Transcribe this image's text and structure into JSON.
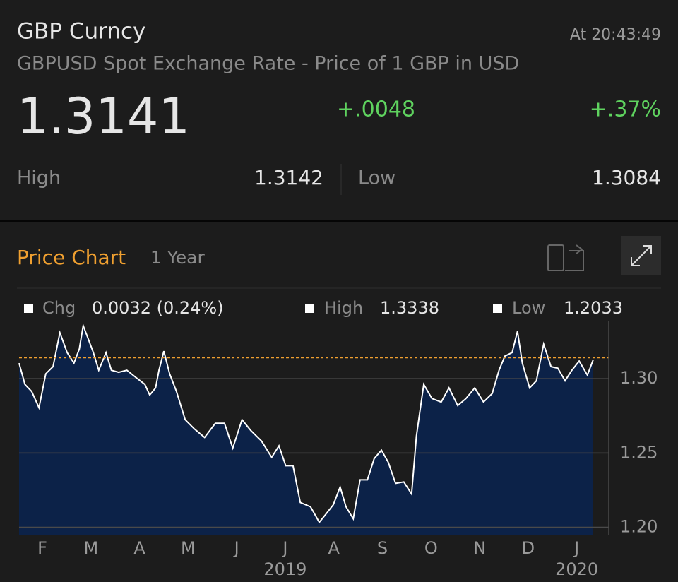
{
  "header": {
    "title": "GBP Curncy",
    "time": "At 20:43:49",
    "subtitle": "GBPUSD Spot Exchange Rate - Price of 1 GBP in USD",
    "price": "1.3141",
    "change": "+.0048",
    "change_pct": "+.37%",
    "high_label": "High",
    "high_value": "1.3142",
    "low_label": "Low",
    "low_value": "1.3084"
  },
  "chart_panel": {
    "title": "Price Chart",
    "range": "1 Year",
    "stats": [
      {
        "label": "Chg",
        "value": "0.0032 (0.24%)"
      },
      {
        "label": "High",
        "value": "1.3338"
      },
      {
        "label": "Low",
        "value": "1.2033"
      }
    ]
  },
  "chart_data": {
    "type": "area",
    "color": "#0c2248",
    "line_color": "#ffffff",
    "x": [
      0.52,
      0.64,
      0.78,
      0.93,
      1.07,
      1.22,
      1.36,
      1.51,
      1.65,
      1.76,
      1.84,
      1.94,
      2.05,
      2.16,
      2.31,
      2.42,
      2.57,
      2.74,
      2.92,
      3.11,
      3.21,
      3.33,
      3.4,
      3.5,
      3.62,
      3.76,
      3.94,
      4.13,
      4.34,
      4.56,
      4.75,
      4.92,
      5.11,
      5.29,
      5.51,
      5.72,
      5.87,
      6.01,
      6.16,
      6.31,
      6.52,
      6.7,
      6.84,
      6.99,
      7.13,
      7.25,
      7.4,
      7.54,
      7.69,
      7.83,
      7.98,
      8.12,
      8.27,
      8.44,
      8.6,
      8.7,
      8.85,
      9.02,
      9.21,
      9.37,
      9.55,
      9.72,
      9.9,
      10.08,
      10.26,
      10.4,
      10.52,
      10.67,
      10.78,
      10.88,
      11.03,
      11.17,
      11.32,
      11.47,
      11.61,
      11.76,
      11.9,
      12.05,
      12.22,
      12.34
    ],
    "values": [
      1.3105,
      1.2962,
      1.2914,
      1.2805,
      1.3033,
      1.3081,
      1.331,
      1.3176,
      1.3105,
      1.32,
      1.3357,
      1.3271,
      1.3176,
      1.3057,
      1.3176,
      1.3057,
      1.3043,
      1.3057,
      1.301,
      1.2962,
      1.289,
      1.2938,
      1.3057,
      1.3186,
      1.3033,
      1.2914,
      1.2724,
      1.2662,
      1.2605,
      1.27,
      1.27,
      1.2533,
      1.2724,
      1.2652,
      1.2581,
      1.2471,
      1.2548,
      1.2414,
      1.2414,
      1.2167,
      1.2138,
      1.2033,
      1.209,
      1.2152,
      1.2271,
      1.2138,
      1.2057,
      1.2319,
      1.2319,
      1.2462,
      1.2519,
      1.2438,
      1.2295,
      1.2305,
      1.2224,
      1.2614,
      1.2962,
      1.2867,
      1.2843,
      1.2938,
      1.2819,
      1.2867,
      1.2938,
      1.2843,
      1.29,
      1.3057,
      1.3152,
      1.3176,
      1.3319,
      1.3105,
      1.2938,
      1.2986,
      1.3233,
      1.3081,
      1.3071,
      1.2986,
      1.3057,
      1.3119,
      1.3024,
      1.3129
    ],
    "reference_line": 1.3141,
    "reference_color": "#f0a030",
    "xlim": [
      0.52,
      12.34
    ],
    "xticks": [
      {
        "value": 1,
        "label": "F"
      },
      {
        "value": 2,
        "label": "M"
      },
      {
        "value": 3,
        "label": "A"
      },
      {
        "value": 4,
        "label": "M"
      },
      {
        "value": 5,
        "label": "J"
      },
      {
        "value": 6,
        "label": "J"
      },
      {
        "value": 7,
        "label": "A"
      },
      {
        "value": 8,
        "label": "S"
      },
      {
        "value": 9,
        "label": "O"
      },
      {
        "value": 10,
        "label": "N"
      },
      {
        "value": 11,
        "label": "D"
      },
      {
        "value": 12,
        "label": "J"
      }
    ],
    "year_ticks": [
      {
        "value": 6,
        "label": "2019"
      },
      {
        "value": 12,
        "label": "2020"
      }
    ],
    "ylim": [
      1.195,
      1.36
    ],
    "yticks": [
      {
        "value": 1.2,
        "label": "1.20"
      },
      {
        "value": 1.25,
        "label": "1.25"
      },
      {
        "value": 1.3,
        "label": "1.30"
      }
    ],
    "grid": true
  }
}
